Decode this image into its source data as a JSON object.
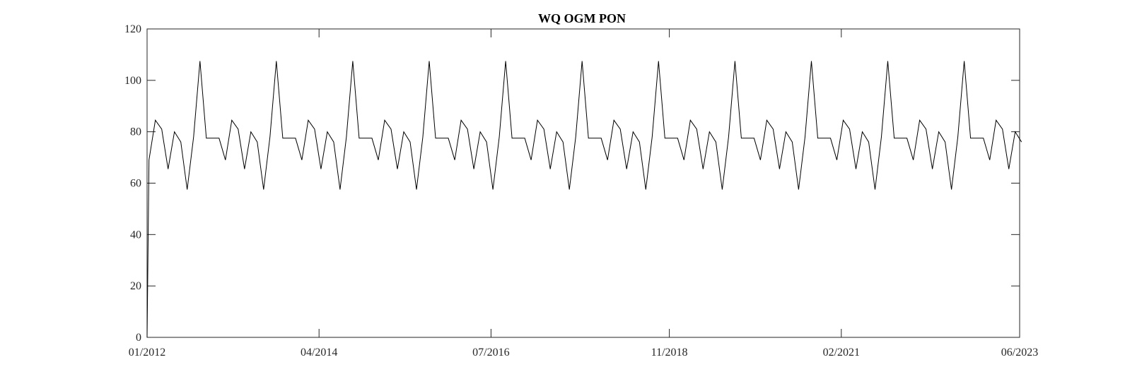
{
  "chart_data": {
    "type": "line",
    "title": "WQ OGM PON",
    "xlabel": "",
    "ylabel": "",
    "x_format": "MM/YYYY",
    "xlim": [
      "2012-01-01",
      "2023-06-01"
    ],
    "ylim": [
      0,
      120
    ],
    "x_ticks": [
      "01/2012",
      "04/2014",
      "07/2016",
      "11/2018",
      "02/2021",
      "06/2023"
    ],
    "y_ticks": [
      0,
      20,
      40,
      60,
      80,
      100,
      120
    ],
    "grid": false,
    "line_color": "#000000",
    "series": [
      {
        "cycle_start": "2012-01-01",
        "initial_value": 0,
        "monthly_cycle": [
          69,
          84.5,
          81,
          65.5,
          80,
          76,
          57.5,
          78,
          107.5,
          77.5,
          77.5,
          77.5
        ]
      }
    ]
  }
}
